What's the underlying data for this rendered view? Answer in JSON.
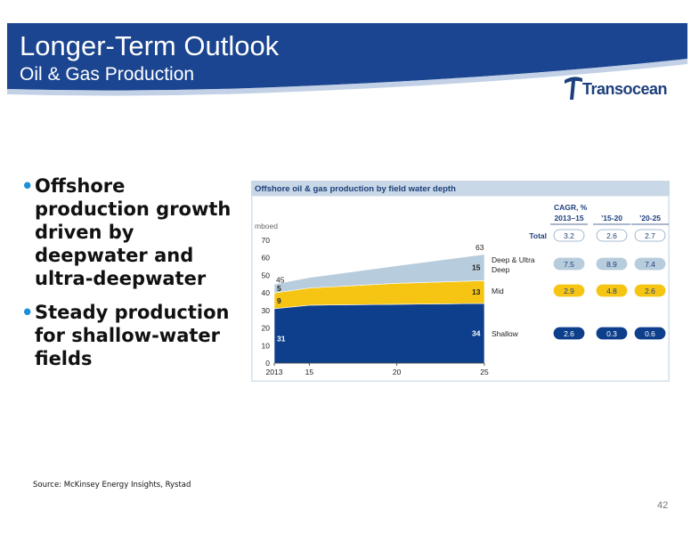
{
  "header": {
    "title": "Longer-Term Outlook",
    "subtitle": "Oil & Gas Production",
    "logo_text": "Transocean"
  },
  "bullets": [
    "Offshore production growth driven by deepwater and ultra-deepwater",
    "Steady production for shallow-water fields"
  ],
  "source": "Source: McKinsey Energy Insights, Rystad",
  "page_number": "42",
  "colors": {
    "header_blue": "#1b4590",
    "shallow": "#0d3f8c",
    "mid": "#f6c514",
    "deep": "#b7ccdc",
    "panel_bg": "#e6eef5"
  },
  "chart_data": {
    "type": "area",
    "title": "Offshore oil & gas production by field water depth",
    "ylabel": "mboed",
    "ylim": [
      0,
      70
    ],
    "yticks": [
      0,
      10,
      20,
      30,
      40,
      50,
      60,
      70
    ],
    "xlim": [
      2013,
      2025
    ],
    "xticks": [
      {
        "value": 2013,
        "label": "2013"
      },
      {
        "value": 2015,
        "label": "15"
      },
      {
        "value": 2020,
        "label": "20"
      },
      {
        "value": 2025,
        "label": "25"
      }
    ],
    "x": [
      2013,
      2015,
      2020,
      2025
    ],
    "stacked": true,
    "series": [
      {
        "name": "Shallow",
        "color": "#0d3f8c",
        "values": [
          31,
          33,
          33.5,
          34
        ],
        "start_label": "31",
        "end_label": "34"
      },
      {
        "name": "Mid",
        "color": "#f6c514",
        "values": [
          9,
          9.8,
          12,
          13
        ],
        "start_label": "9",
        "end_label": "13"
      },
      {
        "name": "Deep & Ultra Deep",
        "color": "#b7ccdc",
        "values": [
          5,
          6,
          10,
          15
        ],
        "start_label": "5",
        "end_label": "15"
      }
    ],
    "total_start_label": "45",
    "total_end_label": "63",
    "cagr": {
      "title": "CAGR, %",
      "columns": [
        "2013–15",
        "’15-20",
        "’20-25"
      ],
      "rows": [
        {
          "label": "Total",
          "values": [
            "3.2",
            "2.6",
            "2.7"
          ],
          "style": "total"
        },
        {
          "label": "Deep & Ultra Deep",
          "values": [
            "7.5",
            "8.9",
            "7.4"
          ],
          "style": "deep"
        },
        {
          "label": "Mid",
          "values": [
            "2.9",
            "4.8",
            "2.6"
          ],
          "style": "mid"
        },
        {
          "label": "Shallow",
          "values": [
            "2.6",
            "0.3",
            "0.6"
          ],
          "style": "shallow"
        }
      ]
    }
  }
}
